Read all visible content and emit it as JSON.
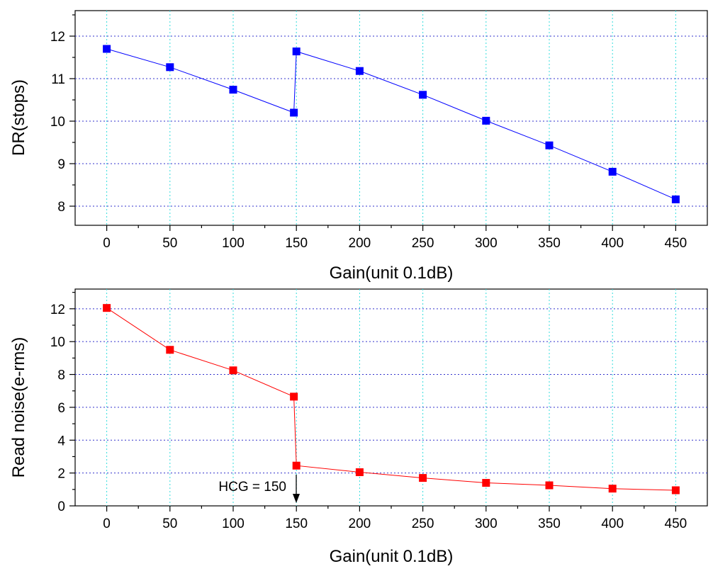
{
  "chart_data": [
    {
      "type": "line",
      "xlabel": "Gain(unit 0.1dB)",
      "ylabel": "DR(stops)",
      "xlim": [
        -25,
        475
      ],
      "ylim": [
        7.55,
        12.6
      ],
      "xticks": [
        0,
        50,
        100,
        150,
        200,
        250,
        300,
        350,
        400,
        450
      ],
      "yticks": [
        8,
        9,
        10,
        11,
        12
      ],
      "grid": true,
      "color": "#0000ff",
      "series": [
        {
          "name": "DR",
          "x": [
            0,
            50,
            100,
            148,
            150,
            200,
            250,
            300,
            350,
            400,
            450
          ],
          "y": [
            11.7,
            11.27,
            10.74,
            10.2,
            11.64,
            11.18,
            10.62,
            10.01,
            9.43,
            8.81,
            8.16
          ]
        }
      ]
    },
    {
      "type": "line",
      "xlabel": "Gain(unit 0.1dB)",
      "ylabel": "Read noise(e-rms)",
      "xlim": [
        -25,
        475
      ],
      "ylim": [
        0,
        13.2
      ],
      "xticks": [
        0,
        50,
        100,
        150,
        200,
        250,
        300,
        350,
        400,
        450
      ],
      "yticks": [
        0,
        2,
        4,
        6,
        8,
        10,
        12
      ],
      "grid": true,
      "color": "#ff0000",
      "series": [
        {
          "name": "Read noise",
          "x": [
            0,
            50,
            100,
            148,
            150,
            200,
            250,
            300,
            350,
            400,
            450
          ],
          "y": [
            12.05,
            9.5,
            8.25,
            6.65,
            2.45,
            2.05,
            1.7,
            1.4,
            1.25,
            1.05,
            0.95
          ]
        }
      ],
      "annotation": {
        "text": "HCG = 150",
        "x": 150
      }
    }
  ]
}
